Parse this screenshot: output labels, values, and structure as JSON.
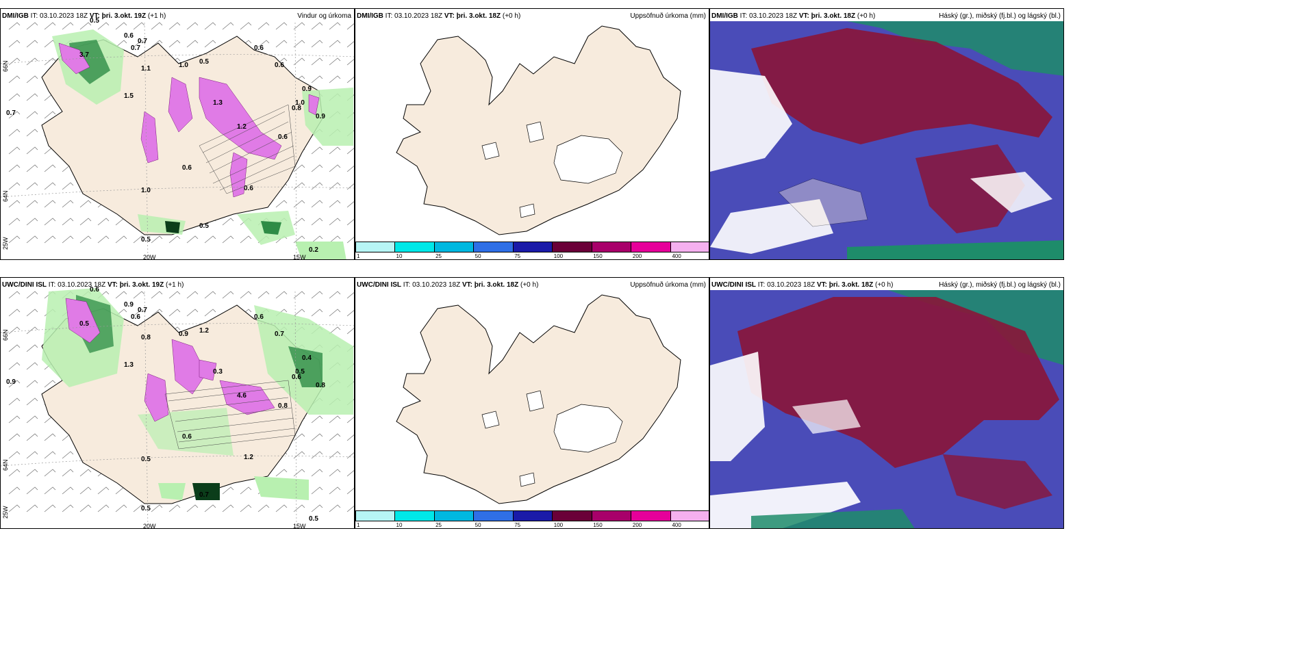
{
  "rows": [
    {
      "model": "DMI/IGB",
      "it_label": "IT:",
      "it_value": "03.10.2023 18Z",
      "panels": [
        {
          "vt_label": "VT:",
          "vt_value": "þri. 3.okt. 19Z",
          "lead": "(+1 h)",
          "ptype": "Vindur og úrkoma"
        },
        {
          "vt_label": "VT:",
          "vt_value": "þri. 3.okt. 18Z",
          "lead": "(+0 h)",
          "ptype": "Uppsöfnuð úrkoma (mm)"
        },
        {
          "vt_label": "VT:",
          "vt_value": "þri. 3.okt. 18Z",
          "lead": "(+0 h)",
          "ptype": "Háský (gr.), miðský (fj.bl.) og lágský (bl.)"
        }
      ],
      "wind_labels": [
        "0.5",
        "0.6",
        "0.7",
        "0.7",
        "3.7",
        "1.1",
        "1.0",
        "0.5",
        "0.6",
        "0.6",
        "1.5",
        "0.9",
        "1.3",
        "1.0",
        "0.8",
        "0.9",
        "1.2",
        "0.6",
        "0.5",
        "0.6",
        "1.0",
        "0.6",
        "0.5",
        "0.7",
        "0.2"
      ]
    },
    {
      "model": "UWC/DINI ISL",
      "it_label": "IT:",
      "it_value": "03.10.2023 18Z",
      "panels": [
        {
          "vt_label": "VT:",
          "vt_value": "þri. 3.okt. 19Z",
          "lead": "(+1 h)",
          "ptype": ""
        },
        {
          "vt_label": "VT:",
          "vt_value": "þri. 3.okt. 18Z",
          "lead": "(+0 h)",
          "ptype": "Uppsöfnuð úrkoma (mm)"
        },
        {
          "vt_label": "VT:",
          "vt_value": "þri. 3.okt. 18Z",
          "lead": "(+0 h)",
          "ptype": "Háský (gr.), miðský (fj.bl.) og lágský (bl.)"
        }
      ],
      "wind_labels": [
        "0.6",
        "0.9",
        "0.7",
        "0.6",
        "0.5",
        "0.8",
        "0.9",
        "1.2",
        "0.6",
        "0.7",
        "1.3",
        "0.4",
        "0.3",
        "0.5",
        "0.6",
        "0.8",
        "4.6",
        "0.8",
        "0.7",
        "0.6",
        "0.5",
        "1.2",
        "0.5",
        "0.9",
        "0.5"
      ]
    }
  ],
  "axis_labels": {
    "lat_66": "66N",
    "lat_64": "64N",
    "lon_20w": "20W",
    "lon_15w": "15W",
    "lat_25w": "25W"
  },
  "colorbar": {
    "colors": [
      "#b7f5f5",
      "#00e8e8",
      "#00b8e0",
      "#2f6fe6",
      "#1a1aa8",
      "#6a0038",
      "#a8006a",
      "#e6009a",
      "#f5b0ef"
    ],
    "ticks": [
      "1",
      "10",
      "25",
      "50",
      "75",
      "100",
      "150",
      "200",
      "400"
    ]
  },
  "colors": {
    "land": "#f7ebdd",
    "precip_light": "#b8f0b0",
    "precip_mid": "#2e8c46",
    "precip_dark": "#0b3d1a",
    "precip_magenta": "#e07be6",
    "cloud_high_red": "#8a1538",
    "cloud_mid_blue": "#4a4cb8",
    "cloud_low_green": "#1e8c6a"
  }
}
